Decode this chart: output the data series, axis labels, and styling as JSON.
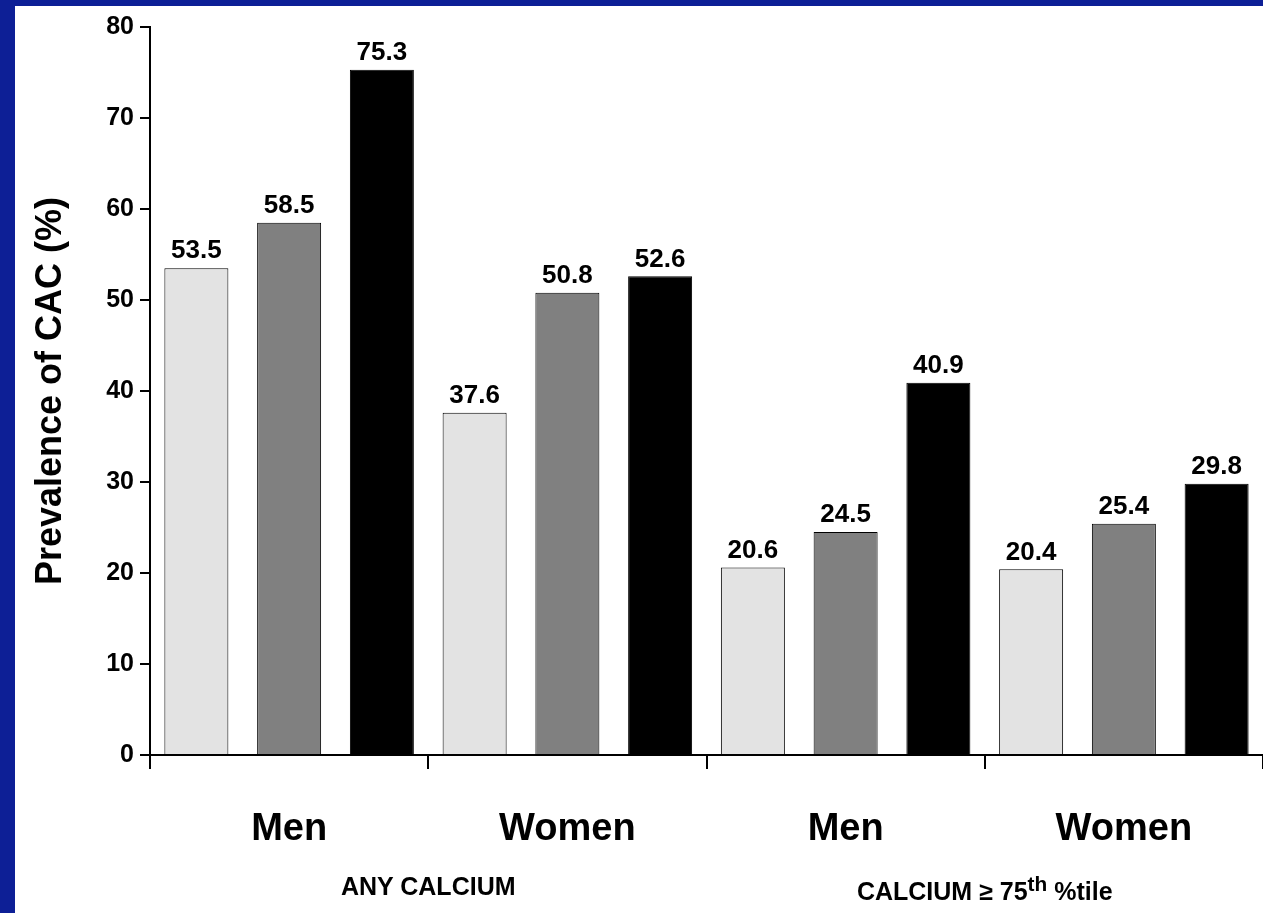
{
  "chart_data": {
    "type": "bar",
    "ylabel": "Prevalence of CAC (%)",
    "categories": [
      "Men",
      "Women",
      "Men",
      "Women"
    ],
    "series": [
      {
        "color": "#e3e3e3",
        "values": [
          53.5,
          37.6,
          20.6,
          20.4
        ]
      },
      {
        "color": "#808080",
        "values": [
          58.5,
          50.8,
          24.5,
          25.4
        ]
      },
      {
        "color": "#000000",
        "values": [
          75.3,
          52.6,
          40.9,
          29.8
        ]
      }
    ],
    "ylim": [
      0,
      80
    ],
    "yticks": [
      0,
      10,
      20,
      30,
      40,
      50,
      60,
      70,
      80
    ],
    "data_labels": true,
    "annotations": [
      "ANY CALCIUM",
      "CALCIUM ≥ 75$^{th}$ %tile"
    ]
  }
}
